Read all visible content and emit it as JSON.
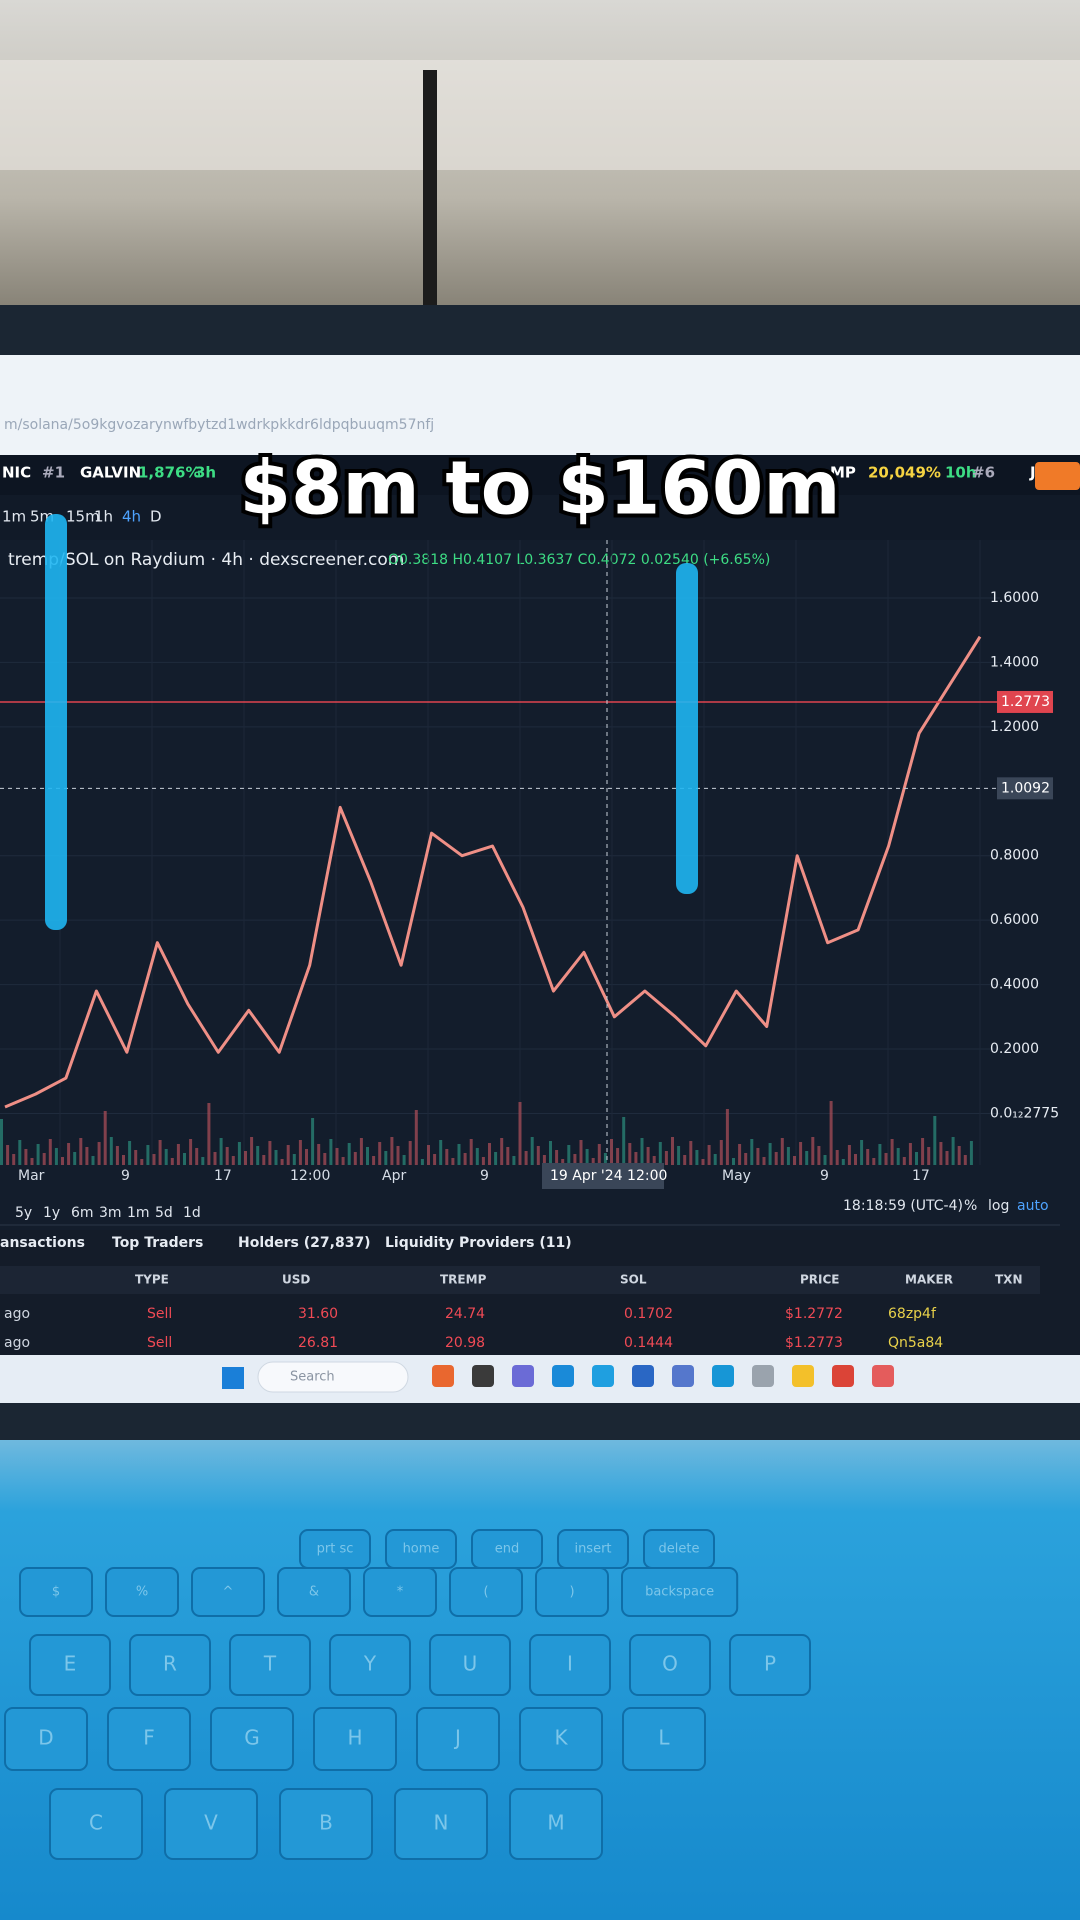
{
  "caption": "$8m to $160m",
  "browser": {
    "url": "m/solana/5o9kgvozarynwfbytzd1wdrkpkkdr6ldpqbuuqm57nfj"
  },
  "ticker": [
    "NIC",
    "#1",
    "GALVIN",
    "1,876%",
    "3h",
    "MP",
    "20,049%",
    "10h",
    "#6",
    "JU"
  ],
  "timeframes": [
    "1m",
    "5m",
    "15m",
    "1h",
    "4h",
    "D"
  ],
  "chart_data": {
    "type": "line",
    "title": "tremp/SOL on Raydium · 4h · dexscreener.com",
    "ohlc": "O0.3818 H0.4107 L0.3637 C0.4072 0.02540 (+6.65%)",
    "x_labels": [
      "Mar",
      "9",
      "17",
      "12:00",
      "Apr",
      "9",
      "May",
      "9",
      "17"
    ],
    "values": [
      0.02,
      0.06,
      0.11,
      0.38,
      0.19,
      0.53,
      0.34,
      0.19,
      0.32,
      0.19,
      0.46,
      0.95,
      0.72,
      0.46,
      0.87,
      0.8,
      0.83,
      0.64,
      0.38,
      0.5,
      0.3,
      0.38,
      0.3,
      0.21,
      0.38,
      0.27,
      0.8,
      0.53,
      0.57,
      0.83,
      1.18,
      1.33,
      1.48
    ],
    "color": "#ef8f86",
    "ylim": [
      -0.16,
      1.78
    ],
    "yticks": [
      {
        "value": 1.6,
        "label": "1.6000"
      },
      {
        "value": 1.4,
        "label": "1.4000"
      },
      {
        "value": 1.2,
        "label": "1.2000"
      },
      {
        "value": 0.8,
        "label": "0.8000"
      },
      {
        "value": 0.6,
        "label": "0.6000"
      },
      {
        "value": 0.4,
        "label": "0.4000"
      },
      {
        "value": 0.2,
        "label": "0.2000"
      },
      {
        "value": 2.775e-13,
        "label": "0.0₁₂2775"
      }
    ],
    "last_price": 1.2773,
    "crosshair_price": 1.0092,
    "crosshair_time": "19 Apr '24 12:00"
  },
  "ranges": [
    "5y",
    "1y",
    "6m",
    "3m",
    "1m",
    "5d",
    "1d"
  ],
  "clock": "18:18:59 (UTC-4)",
  "scale_options": [
    "%",
    "log",
    "auto"
  ],
  "tabs": [
    "ansactions",
    "Top Traders",
    "Holders (27,837)",
    "Liquidity Providers (11)"
  ],
  "table": {
    "columns": [
      "TYPE",
      "USD",
      "TREMP",
      "SOL",
      "PRICE",
      "MAKER",
      "TXN"
    ],
    "rows": [
      [
        "ago",
        "Sell",
        "31.60",
        "24.74",
        "0.1702",
        "$1.2772",
        "68zp4f"
      ],
      [
        "ago",
        "Sell",
        "26.81",
        "20.98",
        "0.1444",
        "$1.2773",
        "Qn5a84"
      ]
    ]
  },
  "taskbar": {
    "search": "Search"
  },
  "keyboard": [
    [
      "prt sc",
      "home",
      "end",
      "insert",
      "delete"
    ],
    [
      "$",
      "%",
      "^",
      "&",
      "*",
      "(",
      ")",
      "backspace"
    ],
    [
      "E",
      "R",
      "T",
      "Y",
      "U",
      "I",
      "O",
      "P"
    ],
    [
      "D",
      "F",
      "G",
      "H",
      "J",
      "K",
      "L"
    ],
    [
      "C",
      "V",
      "B",
      "N",
      "M"
    ]
  ]
}
